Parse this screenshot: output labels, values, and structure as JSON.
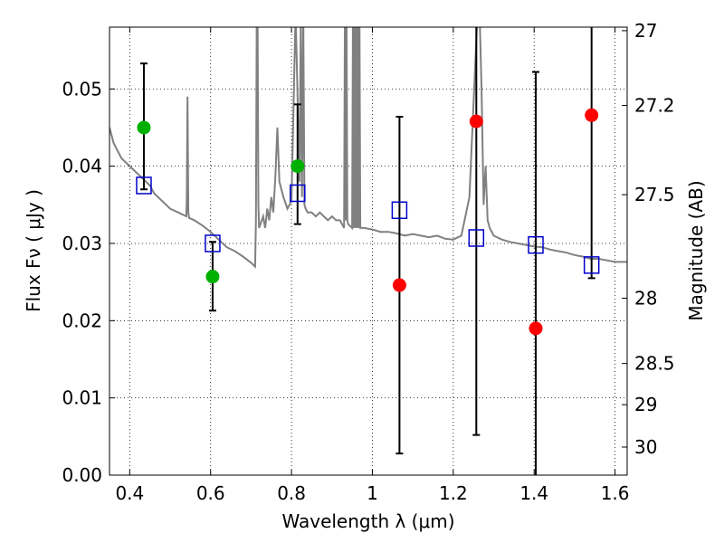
{
  "chart_data": {
    "type": "scatter",
    "title": "",
    "xlabel": "Wavelength  λ (μm)",
    "ylabel": "Flux  Fν  ( μJy )",
    "ylabel_right": "Magnitude (AB)",
    "xlim": [
      0.35,
      1.63
    ],
    "ylim": [
      0.0,
      0.058
    ],
    "grid": true,
    "x_ticks": [
      0.4,
      0.6,
      0.8,
      1.0,
      1.2,
      1.4,
      1.6
    ],
    "x_tick_labels": [
      "0.4",
      "0.6",
      "0.8",
      "1",
      "1.2",
      "1.4",
      "1.6"
    ],
    "y_ticks": [
      0.0,
      0.01,
      0.02,
      0.03,
      0.04,
      0.05
    ],
    "y_tick_labels": [
      "0.00",
      "0.01",
      "0.02",
      "0.03",
      "0.04",
      "0.05"
    ],
    "right_ticks": [
      27,
      27.2,
      27.5,
      28,
      28.5,
      29,
      30
    ],
    "right_tick_labels": [
      "27",
      "27.2",
      "27.5",
      "28",
      "28.5",
      "29",
      "30"
    ],
    "colors": {
      "model": "#808080",
      "green": "#00b000",
      "red": "#ff0000",
      "model_box": "#0000cc",
      "errorbar": "#000000"
    },
    "series": [
      {
        "kind": "observed-detection",
        "color": "green",
        "x": [
          0.435,
          0.605,
          0.815
        ],
        "y": [
          0.045,
          0.0257,
          0.04
        ]
      },
      {
        "kind": "observed-nondetection",
        "color": "red",
        "x": [
          1.067,
          1.257,
          1.404,
          1.542
        ],
        "y": [
          0.0246,
          0.0458,
          0.019,
          0.0466
        ]
      },
      {
        "kind": "model-photometry",
        "color": "model_box",
        "x": [
          0.435,
          0.605,
          0.815,
          1.067,
          1.257,
          1.404,
          1.542
        ],
        "y": [
          0.0375,
          0.03,
          0.0365,
          0.0343,
          0.0307,
          0.0298,
          0.0272
        ]
      },
      {
        "kind": "errorbars",
        "x": [
          0.435,
          0.605,
          0.815,
          1.067,
          1.257,
          1.404,
          1.542
        ],
        "low": [
          0.037,
          0.0213,
          0.0325,
          0.0028,
          0.0052,
          -0.002,
          0.0255
        ],
        "high": [
          0.0533,
          0.0302,
          0.048,
          0.0464,
          0.059,
          0.0522,
          0.059
        ]
      },
      {
        "kind": "model-spectrum",
        "color": "model",
        "x": [
          0.35,
          0.36,
          0.37,
          0.38,
          0.39,
          0.4,
          0.41,
          0.42,
          0.43,
          0.44,
          0.45,
          0.46,
          0.47,
          0.48,
          0.49,
          0.5,
          0.52,
          0.54,
          0.541,
          0.543,
          0.545,
          0.547,
          0.56,
          0.58,
          0.6,
          0.62,
          0.64,
          0.66,
          0.68,
          0.7,
          0.71,
          0.712,
          0.714,
          0.716,
          0.718,
          0.72,
          0.73,
          0.735,
          0.74,
          0.745,
          0.75,
          0.755,
          0.76,
          0.765,
          0.77,
          0.78,
          0.79,
          0.8,
          0.81,
          0.82,
          0.823,
          0.826,
          0.829,
          0.832,
          0.835,
          0.84,
          0.85,
          0.86,
          0.87,
          0.88,
          0.89,
          0.9,
          0.91,
          0.92,
          0.93,
          0.932,
          0.934,
          0.936,
          0.938,
          0.94,
          0.95,
          0.952,
          0.954,
          0.956,
          0.958,
          0.96,
          0.962,
          0.964,
          0.966,
          0.968,
          0.97,
          0.98,
          1.0,
          1.02,
          1.04,
          1.06,
          1.08,
          1.1,
          1.12,
          1.14,
          1.16,
          1.18,
          1.2,
          1.22,
          1.24,
          1.26,
          1.265,
          1.27,
          1.275,
          1.28,
          1.285,
          1.29,
          1.3,
          1.32,
          1.34,
          1.36,
          1.38,
          1.4,
          1.42,
          1.44,
          1.46,
          1.48,
          1.5,
          1.52,
          1.54,
          1.56,
          1.58,
          1.6,
          1.63
        ],
        "y": [
          0.045,
          0.043,
          0.042,
          0.041,
          0.0405,
          0.04,
          0.0395,
          0.039,
          0.0385,
          0.038,
          0.0375,
          0.0365,
          0.036,
          0.0355,
          0.035,
          0.0345,
          0.034,
          0.0335,
          0.036,
          0.049,
          0.034,
          0.0333,
          0.033,
          0.0323,
          0.0315,
          0.0305,
          0.0295,
          0.029,
          0.0283,
          0.0275,
          0.027,
          0.033,
          0.06,
          0.06,
          0.035,
          0.032,
          0.0335,
          0.032,
          0.0345,
          0.033,
          0.036,
          0.034,
          0.0385,
          0.045,
          0.038,
          0.036,
          0.0345,
          0.0355,
          0.06,
          0.038,
          0.06,
          0.036,
          0.06,
          0.035,
          0.0345,
          0.034,
          0.034,
          0.0335,
          0.034,
          0.0335,
          0.033,
          0.0335,
          0.033,
          0.033,
          0.032,
          0.06,
          0.033,
          0.06,
          0.033,
          0.0325,
          0.032,
          0.06,
          0.032,
          0.06,
          0.032,
          0.06,
          0.032,
          0.06,
          0.032,
          0.06,
          0.032,
          0.032,
          0.0318,
          0.0315,
          0.0315,
          0.0313,
          0.031,
          0.0312,
          0.031,
          0.0308,
          0.031,
          0.0306,
          0.0305,
          0.031,
          0.036,
          0.06,
          0.06,
          0.05,
          0.035,
          0.04,
          0.033,
          0.032,
          0.031,
          0.0305,
          0.0302,
          0.03,
          0.0298,
          0.0296,
          0.0295,
          0.0292,
          0.029,
          0.0288,
          0.0285,
          0.0283,
          0.028,
          0.028,
          0.0278,
          0.0276,
          0.0276
        ]
      }
    ]
  }
}
